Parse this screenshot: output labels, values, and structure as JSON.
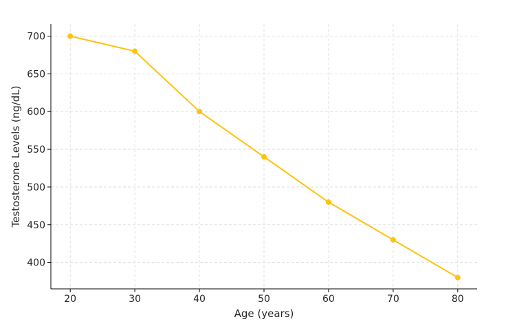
{
  "chart_data": {
    "type": "line",
    "title": "",
    "xlabel": "Age (years)",
    "ylabel": "Testosterone Levels (ng/dL)",
    "x": [
      20,
      30,
      40,
      50,
      60,
      70,
      80
    ],
    "series": [
      {
        "values": [
          700,
          680,
          600,
          540,
          480,
          430,
          380
        ],
        "color": "#FFC20E"
      }
    ],
    "xticks": [
      20,
      30,
      40,
      50,
      60,
      70,
      80
    ],
    "yticks": [
      400,
      450,
      500,
      550,
      600,
      650,
      700
    ],
    "xlim": [
      17,
      83
    ],
    "ylim": [
      365,
      716
    ],
    "grid": true,
    "grid_color": "#d9d9d9"
  }
}
